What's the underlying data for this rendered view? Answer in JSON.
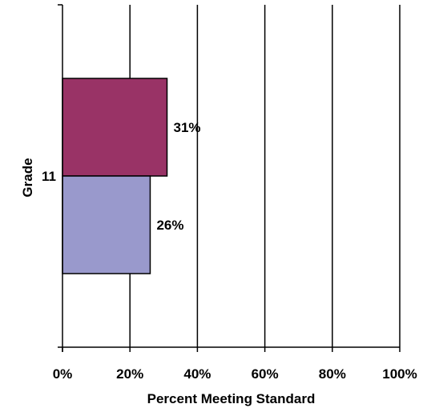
{
  "chart_data": {
    "type": "bar",
    "orientation": "horizontal",
    "categories": [
      "11"
    ],
    "series": [
      {
        "values": [
          31
        ],
        "color": "#993366",
        "data_label": "31%"
      },
      {
        "values": [
          26
        ],
        "color": "#9999cc",
        "data_label": "26%"
      }
    ],
    "xlabel": "Percent Meeting Standard",
    "ylabel": "Grade",
    "xlim": [
      0,
      100
    ],
    "xticks": [
      0,
      20,
      40,
      60,
      80,
      100
    ],
    "xtick_labels": [
      "0%",
      "20%",
      "40%",
      "60%",
      "80%",
      "100%"
    ],
    "grid": "vertical",
    "legend": "none"
  }
}
